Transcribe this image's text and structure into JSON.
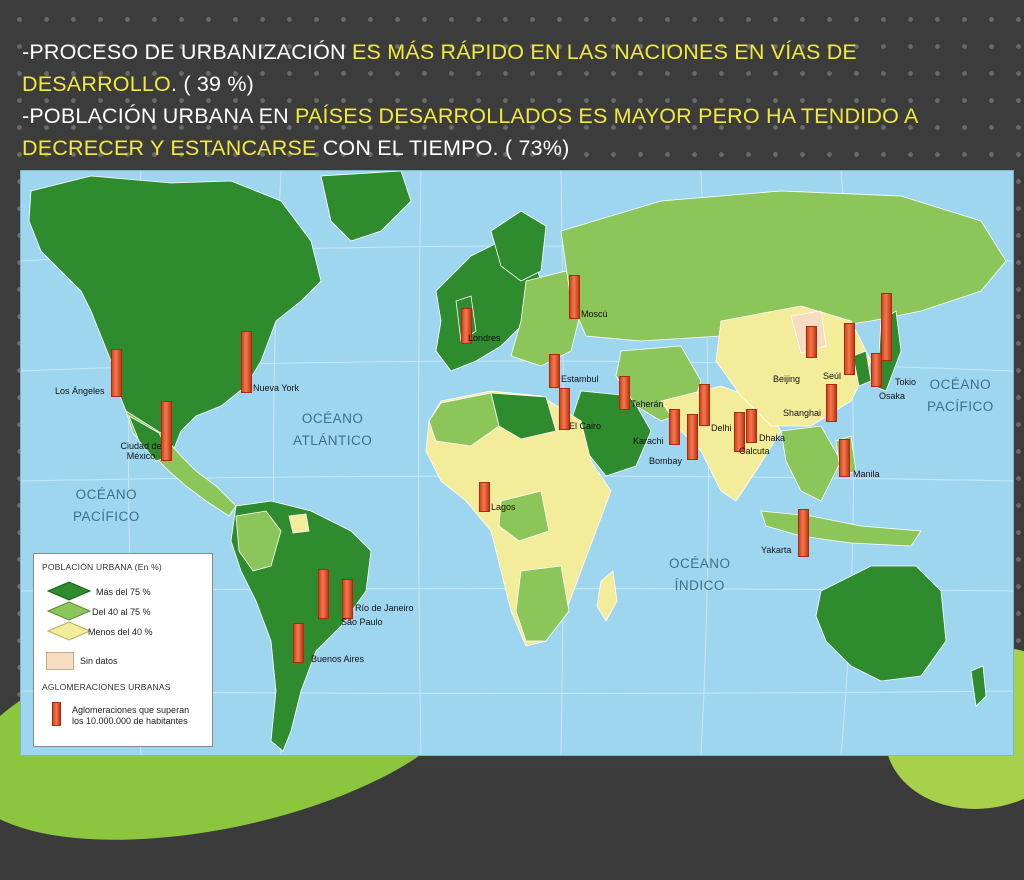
{
  "slide": {
    "title": {
      "line1_prefix": "-PROCESO DE URBANIZACIÓN ",
      "line1_highlight": "ES MÁS RÁPIDO EN LAS NACIONES EN VÍAS DE DESARROLLO",
      "line1_suffix": ".  ( 39 %)",
      "line2_prefix": "-POBLACIÓN URBANA EN ",
      "line2_highlight": "PAÍSES DESARROLLADOS ES MAYOR PERO HA TENDIDO A DECRECER  Y ESTANCARSE",
      "line2_suffix": " CON EL TIEMPO. ( 73%)"
    },
    "colors": {
      "highlight": "#f2ea3a",
      "text": "#ffffff",
      "ocean": "#9fd6ef",
      "high_urban": "#2e8b2e",
      "mid_urban": "#8cc65a",
      "low_urban": "#f3ec9a",
      "no_data": "#f6dcc0",
      "agglomeration": "#e0532a"
    }
  },
  "map": {
    "oceans": [
      {
        "id": "atlantico",
        "line1": "OCÉANO",
        "line2": "ATLÁNTICO"
      },
      {
        "id": "pacifico-w",
        "line1": "OCÉANO",
        "line2": "PACÍFICO"
      },
      {
        "id": "indico",
        "line1": "OCÉANO",
        "line2": "ÍNDICO"
      },
      {
        "id": "pacifico-e",
        "line1": "OCÉANO",
        "line2": "PACÍFICO"
      }
    ],
    "cities": [
      "Los Ángeles",
      "Nueva York",
      "Ciudad de México",
      "Londres",
      "Moscú",
      "Estambul",
      "El Cairo",
      "Teherán",
      "Karachi",
      "Bombay",
      "Delhi",
      "Dhaka",
      "Calcuta",
      "Beijing",
      "Seúl",
      "Tokio",
      "Osaka",
      "Shanghai",
      "Manila",
      "Yakarta",
      "Lagos",
      "Río de Janeiro",
      "São Paulo",
      "Buenos Aires"
    ]
  },
  "legend": {
    "title1": "POBLACIÓN URBANA (En %)",
    "items": [
      "Más del 75 %",
      "Del 40 al 75 %",
      "Menos del 40 %",
      "Sin datos"
    ],
    "title2": "AGLOMERACIONES URBANAS",
    "aggl_line1": "Aglomeraciones que superan",
    "aggl_line2": "los 10.000.000 de habitantes"
  }
}
